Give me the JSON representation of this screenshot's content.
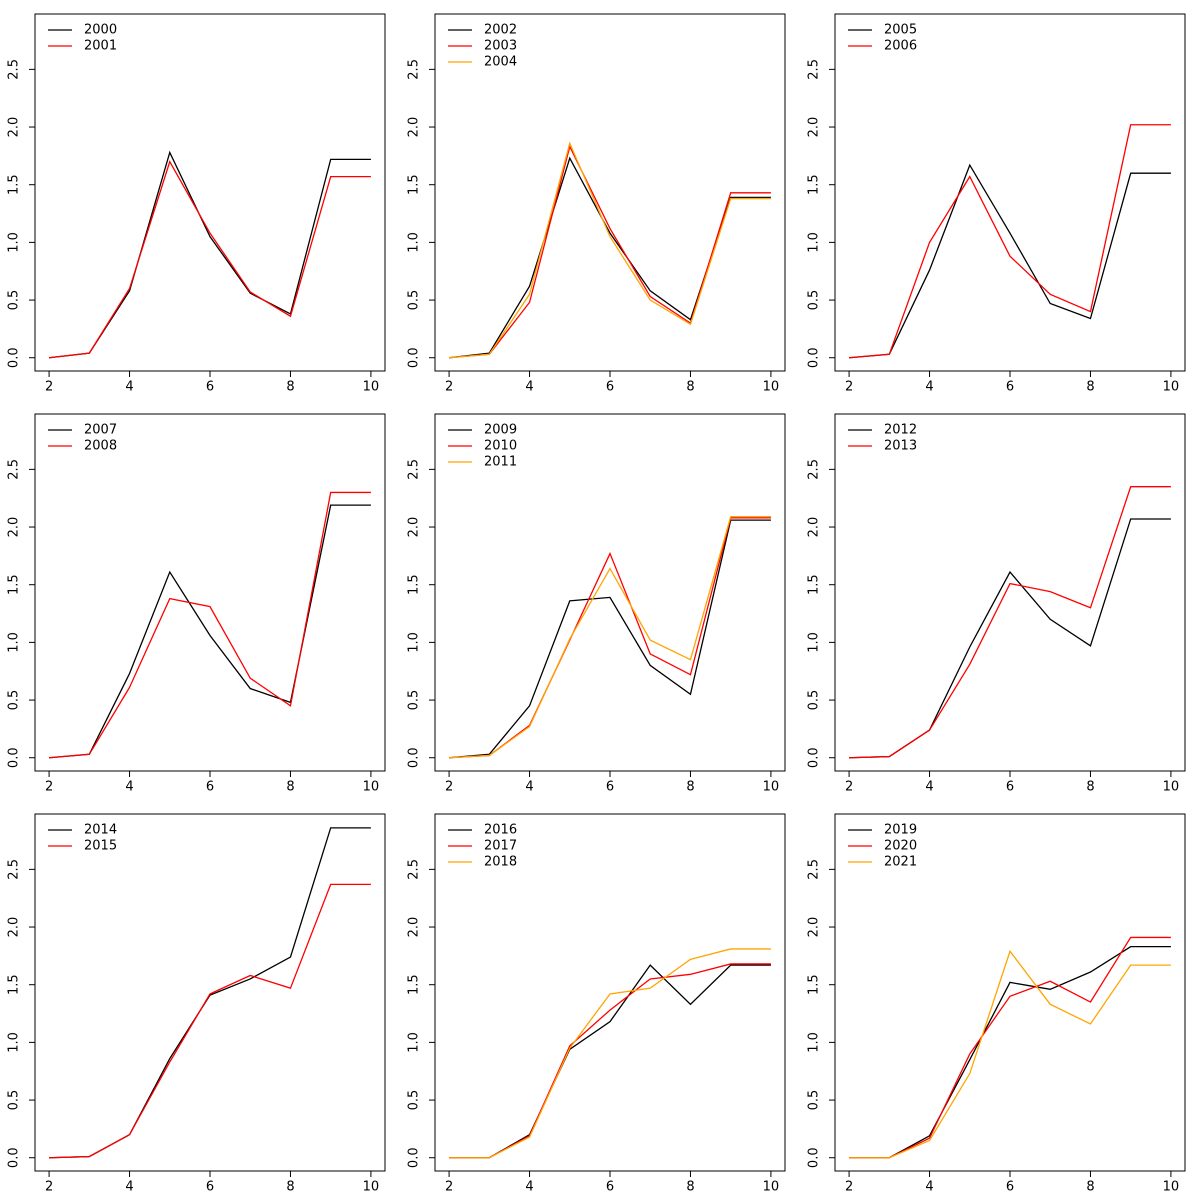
{
  "chart_data": [
    {
      "type": "line",
      "x": [
        2,
        3,
        4,
        5,
        6,
        7,
        8,
        9,
        10
      ],
      "xlim": [
        1.65,
        10.35
      ],
      "ylim": [
        -0.115,
        2.98
      ],
      "xticks": [
        2,
        4,
        6,
        8,
        10
      ],
      "yticks": [
        {
          "value": 0,
          "label": "0.0"
        },
        0.5,
        {
          "value": 1,
          "label": "1.0"
        },
        1.5,
        {
          "value": 2,
          "label": "2.0"
        },
        2.5
      ],
      "legend": "topleft",
      "series": [
        {
          "name": "2000",
          "color": "#000000",
          "values": [
            0,
            0.04,
            0.58,
            1.78,
            1.05,
            0.56,
            0.38,
            1.72,
            1.72
          ]
        },
        {
          "name": "2001",
          "color": "#ff0000",
          "values": [
            0,
            0.04,
            0.6,
            1.7,
            1.08,
            0.57,
            0.36,
            1.57,
            1.57
          ]
        }
      ]
    },
    {
      "type": "line",
      "x": [
        2,
        3,
        4,
        5,
        6,
        7,
        8,
        9,
        10
      ],
      "xlim": [
        1.65,
        10.35
      ],
      "ylim": [
        -0.115,
        2.98
      ],
      "xticks": [
        2,
        4,
        6,
        8,
        10
      ],
      "yticks": [
        {
          "value": 0,
          "label": "0.0"
        },
        0.5,
        {
          "value": 1,
          "label": "1.0"
        },
        1.5,
        {
          "value": 2,
          "label": "2.0"
        },
        2.5
      ],
      "legend": "topleft",
      "series": [
        {
          "name": "2002",
          "color": "#000000",
          "values": [
            0,
            0.04,
            0.62,
            1.73,
            1.08,
            0.58,
            0.33,
            1.39,
            1.39
          ]
        },
        {
          "name": "2003",
          "color": "#ff0000",
          "values": [
            0,
            0.03,
            0.48,
            1.83,
            1.12,
            0.53,
            0.3,
            1.43,
            1.43
          ]
        },
        {
          "name": "2004",
          "color": "#ffa500",
          "values": [
            0,
            0.03,
            0.55,
            1.86,
            1.05,
            0.5,
            0.29,
            1.38,
            1.38
          ]
        }
      ]
    },
    {
      "type": "line",
      "x": [
        2,
        3,
        4,
        5,
        6,
        7,
        8,
        9,
        10
      ],
      "xlim": [
        1.65,
        10.35
      ],
      "ylim": [
        -0.115,
        2.98
      ],
      "xticks": [
        2,
        4,
        6,
        8,
        10
      ],
      "yticks": [
        {
          "value": 0,
          "label": "0.0"
        },
        0.5,
        {
          "value": 1,
          "label": "1.0"
        },
        1.5,
        {
          "value": 2,
          "label": "2.0"
        },
        2.5
      ],
      "legend": "topleft",
      "series": [
        {
          "name": "2005",
          "color": "#000000",
          "values": [
            0,
            0.03,
            0.76,
            1.67,
            1.08,
            0.47,
            0.34,
            1.6,
            1.6
          ]
        },
        {
          "name": "2006",
          "color": "#ff0000",
          "values": [
            0,
            0.03,
            1.0,
            1.57,
            0.88,
            0.55,
            0.4,
            2.02,
            2.02
          ]
        }
      ]
    },
    {
      "type": "line",
      "x": [
        2,
        3,
        4,
        5,
        6,
        7,
        8,
        9,
        10
      ],
      "xlim": [
        1.65,
        10.35
      ],
      "ylim": [
        -0.115,
        2.98
      ],
      "xticks": [
        2,
        4,
        6,
        8,
        10
      ],
      "yticks": [
        {
          "value": 0,
          "label": "0.0"
        },
        0.5,
        {
          "value": 1,
          "label": "1.0"
        },
        1.5,
        {
          "value": 2,
          "label": "2.0"
        },
        2.5
      ],
      "legend": "topleft",
      "series": [
        {
          "name": "2007",
          "color": "#000000",
          "values": [
            0,
            0.03,
            0.73,
            1.61,
            1.06,
            0.6,
            0.48,
            2.19,
            2.19
          ]
        },
        {
          "name": "2008",
          "color": "#ff0000",
          "values": [
            0,
            0.03,
            0.61,
            1.38,
            1.31,
            0.69,
            0.45,
            2.3,
            2.3
          ]
        }
      ]
    },
    {
      "type": "line",
      "x": [
        2,
        3,
        4,
        5,
        6,
        7,
        8,
        9,
        10
      ],
      "xlim": [
        1.65,
        10.35
      ],
      "ylim": [
        -0.115,
        2.98
      ],
      "xticks": [
        2,
        4,
        6,
        8,
        10
      ],
      "yticks": [
        {
          "value": 0,
          "label": "0.0"
        },
        0.5,
        {
          "value": 1,
          "label": "1.0"
        },
        1.5,
        {
          "value": 2,
          "label": "2.0"
        },
        2.5
      ],
      "legend": "topleft",
      "series": [
        {
          "name": "2009",
          "color": "#000000",
          "values": [
            0,
            0.03,
            0.45,
            1.36,
            1.39,
            0.8,
            0.55,
            2.06,
            2.06
          ]
        },
        {
          "name": "2010",
          "color": "#ff0000",
          "values": [
            0,
            0.02,
            0.28,
            1.02,
            1.77,
            0.9,
            0.72,
            2.08,
            2.08
          ]
        },
        {
          "name": "2011",
          "color": "#ffa500",
          "values": [
            0,
            0.02,
            0.27,
            1.03,
            1.64,
            1.02,
            0.85,
            2.09,
            2.09
          ]
        }
      ]
    },
    {
      "type": "line",
      "x": [
        2,
        3,
        4,
        5,
        6,
        7,
        8,
        9,
        10
      ],
      "xlim": [
        1.65,
        10.35
      ],
      "ylim": [
        -0.115,
        2.98
      ],
      "xticks": [
        2,
        4,
        6,
        8,
        10
      ],
      "yticks": [
        {
          "value": 0,
          "label": "0.0"
        },
        0.5,
        {
          "value": 1,
          "label": "1.0"
        },
        1.5,
        {
          "value": 2,
          "label": "2.0"
        },
        2.5
      ],
      "legend": "topleft",
      "series": [
        {
          "name": "2012",
          "color": "#000000",
          "values": [
            0,
            0.01,
            0.24,
            0.96,
            1.61,
            1.2,
            0.97,
            2.07,
            2.07
          ]
        },
        {
          "name": "2013",
          "color": "#ff0000",
          "values": [
            0,
            0.01,
            0.24,
            0.81,
            1.51,
            1.44,
            1.3,
            2.35,
            2.35
          ]
        }
      ]
    },
    {
      "type": "line",
      "x": [
        2,
        3,
        4,
        5,
        6,
        7,
        8,
        9,
        10
      ],
      "xlim": [
        1.65,
        10.35
      ],
      "ylim": [
        -0.115,
        2.98
      ],
      "xticks": [
        2,
        4,
        6,
        8,
        10
      ],
      "yticks": [
        {
          "value": 0,
          "label": "0.0"
        },
        0.5,
        {
          "value": 1,
          "label": "1.0"
        },
        1.5,
        {
          "value": 2,
          "label": "2.0"
        },
        2.5
      ],
      "legend": "topleft",
      "series": [
        {
          "name": "2014",
          "color": "#000000",
          "values": [
            0,
            0.01,
            0.2,
            0.86,
            1.41,
            1.55,
            1.74,
            2.86,
            2.86
          ]
        },
        {
          "name": "2015",
          "color": "#ff0000",
          "values": [
            0,
            0.01,
            0.2,
            0.83,
            1.42,
            1.58,
            1.47,
            2.37,
            2.37
          ]
        }
      ]
    },
    {
      "type": "line",
      "x": [
        2,
        3,
        4,
        5,
        6,
        7,
        8,
        9,
        10
      ],
      "xlim": [
        1.65,
        10.35
      ],
      "ylim": [
        -0.115,
        2.98
      ],
      "xticks": [
        2,
        4,
        6,
        8,
        10
      ],
      "yticks": [
        {
          "value": 0,
          "label": "0.0"
        },
        0.5,
        {
          "value": 1,
          "label": "1.0"
        },
        1.5,
        {
          "value": 2,
          "label": "2.0"
        },
        2.5
      ],
      "legend": "topleft",
      "series": [
        {
          "name": "2016",
          "color": "#000000",
          "values": [
            0,
            0,
            0.2,
            0.94,
            1.18,
            1.67,
            1.33,
            1.67,
            1.67
          ]
        },
        {
          "name": "2017",
          "color": "#ff0000",
          "values": [
            0,
            0,
            0.19,
            0.97,
            1.28,
            1.55,
            1.59,
            1.68,
            1.68
          ]
        },
        {
          "name": "2018",
          "color": "#ffa500",
          "values": [
            0,
            0,
            0.18,
            0.95,
            1.42,
            1.47,
            1.72,
            1.81,
            1.81
          ]
        }
      ]
    },
    {
      "type": "line",
      "x": [
        2,
        3,
        4,
        5,
        6,
        7,
        8,
        9,
        10
      ],
      "xlim": [
        1.65,
        10.35
      ],
      "ylim": [
        -0.115,
        2.98
      ],
      "xticks": [
        2,
        4,
        6,
        8,
        10
      ],
      "yticks": [
        {
          "value": 0,
          "label": "0.0"
        },
        0.5,
        {
          "value": 1,
          "label": "1.0"
        },
        1.5,
        {
          "value": 2,
          "label": "2.0"
        },
        2.5
      ],
      "legend": "topleft",
      "series": [
        {
          "name": "2019",
          "color": "#000000",
          "values": [
            0,
            0,
            0.19,
            0.85,
            1.52,
            1.46,
            1.61,
            1.83,
            1.83
          ]
        },
        {
          "name": "2020",
          "color": "#ff0000",
          "values": [
            0,
            0,
            0.17,
            0.9,
            1.4,
            1.53,
            1.35,
            1.91,
            1.91
          ]
        },
        {
          "name": "2021",
          "color": "#ffa500",
          "values": [
            0,
            0,
            0.15,
            0.73,
            1.79,
            1.33,
            1.16,
            1.67,
            1.67
          ]
        }
      ]
    }
  ]
}
